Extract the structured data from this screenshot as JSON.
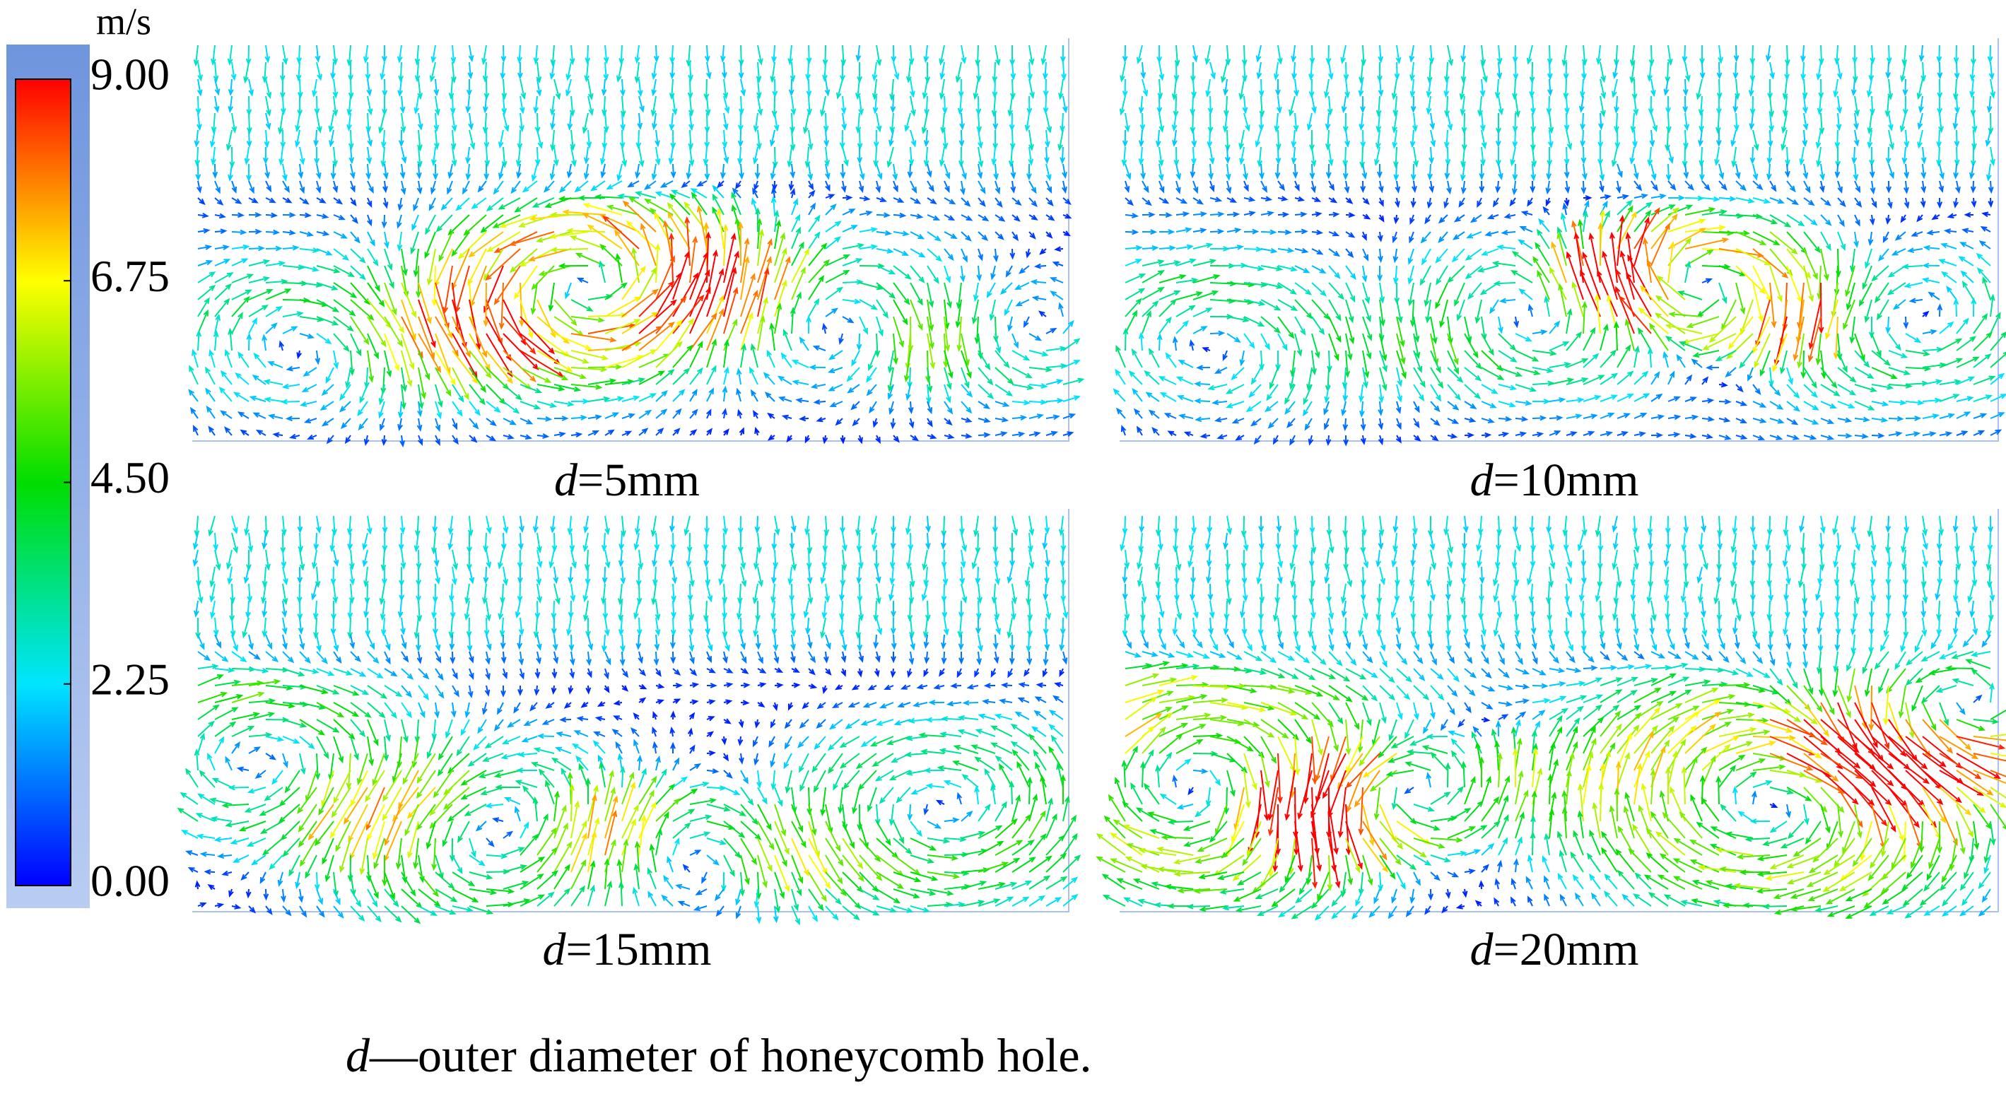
{
  "colorbar": {
    "unit": "m/s",
    "range": [
      0,
      9
    ],
    "ticks": [
      {
        "value": 0,
        "label": "0.00"
      },
      {
        "value": 2.25,
        "label": "2.25"
      },
      {
        "value": 4.5,
        "label": "4.50"
      },
      {
        "value": 6.75,
        "label": "6.75"
      },
      {
        "value": 9,
        "label": "9.00"
      }
    ]
  },
  "panels": [
    {
      "variable": "d",
      "label": "=5mm"
    },
    {
      "variable": "d",
      "label": "=10mm"
    },
    {
      "variable": "d",
      "label": "=15mm"
    },
    {
      "variable": "d",
      "label": "=20mm"
    }
  ],
  "caption": {
    "variable": "d",
    "text": "—outer diameter of honeycomb hole."
  }
}
